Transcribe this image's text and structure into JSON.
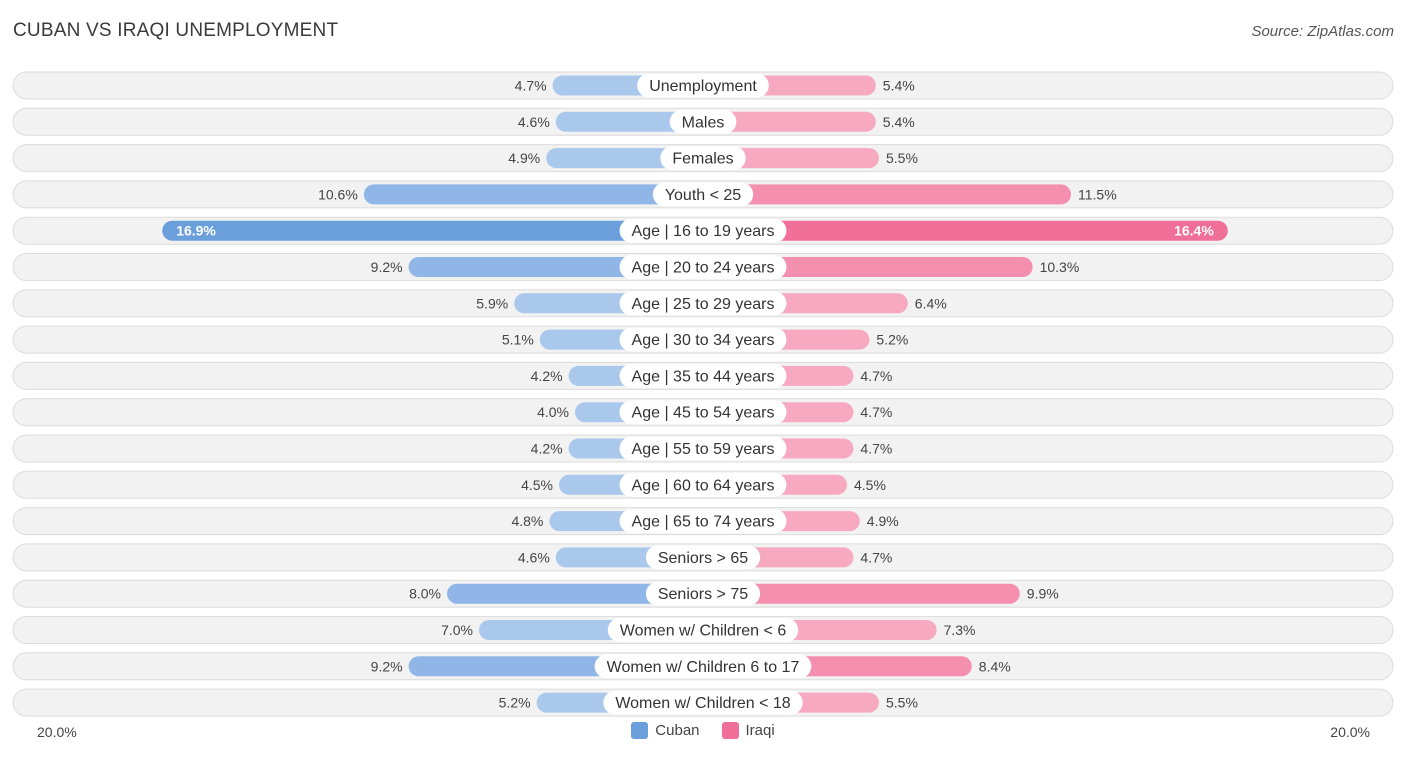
{
  "title": "CUBAN VS IRAQI UNEMPLOYMENT",
  "source": "Source: ZipAtlas.com",
  "colors": {
    "cuban": "#6a9fdc",
    "cuban_light": "#a9c8ec",
    "iraqi": "#f06f98",
    "iraqi_light": "#f6a9c1",
    "row_bg": "#f2f2f2",
    "row_border": "#dcdcdc"
  },
  "chart_data": {
    "type": "bar",
    "orientation": "horizontal-diverging",
    "title": "CUBAN VS IRAQI UNEMPLOYMENT",
    "xlim": [
      -20,
      20
    ],
    "axis_labels": {
      "left": "20.0%",
      "right": "20.0%"
    },
    "legend": {
      "position": "bottom-center"
    },
    "categories": [
      "Unemployment",
      "Males",
      "Females",
      "Youth < 25",
      "Age | 16 to 19 years",
      "Age | 20 to 24 years",
      "Age | 25 to 29 years",
      "Age | 30 to 34 years",
      "Age | 35 to 44 years",
      "Age | 45 to 54 years",
      "Age | 55 to 59 years",
      "Age | 60 to 64 years",
      "Age | 65 to 74 years",
      "Seniors > 65",
      "Seniors > 75",
      "Women w/ Children < 6",
      "Women w/ Children 6 to 17",
      "Women w/ Children < 18"
    ],
    "series": [
      {
        "name": "Cuban",
        "values": [
          4.7,
          4.6,
          4.9,
          10.6,
          16.9,
          9.2,
          5.9,
          5.1,
          4.2,
          4.0,
          4.2,
          4.5,
          4.8,
          4.6,
          8.0,
          7.0,
          9.2,
          5.2
        ],
        "labels": [
          "4.7%",
          "4.6%",
          "4.9%",
          "10.6%",
          "16.9%",
          "9.2%",
          "5.9%",
          "5.1%",
          "4.2%",
          "4.0%",
          "4.2%",
          "4.5%",
          "4.8%",
          "4.6%",
          "8.0%",
          "7.0%",
          "9.2%",
          "5.2%"
        ]
      },
      {
        "name": "Iraqi",
        "values": [
          5.4,
          5.4,
          5.5,
          11.5,
          16.4,
          10.3,
          6.4,
          5.2,
          4.7,
          4.7,
          4.7,
          4.5,
          4.9,
          4.7,
          9.9,
          7.3,
          8.4,
          5.5
        ],
        "labels": [
          "5.4%",
          "5.4%",
          "5.5%",
          "11.5%",
          "16.4%",
          "10.3%",
          "6.4%",
          "5.2%",
          "4.7%",
          "4.7%",
          "4.7%",
          "4.5%",
          "4.9%",
          "4.7%",
          "9.9%",
          "7.3%",
          "8.4%",
          "5.5%"
        ]
      }
    ]
  }
}
